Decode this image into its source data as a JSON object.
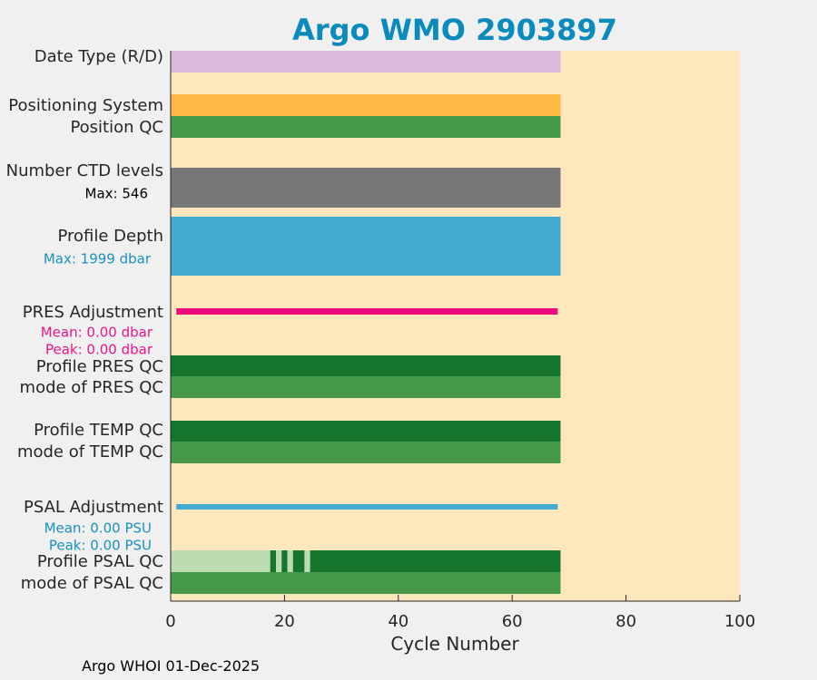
{
  "chart_data": {
    "type": "bar",
    "title": "Argo WMO 2903897",
    "xlabel": "Cycle Number",
    "xlim": [
      0,
      100
    ],
    "xticks": [
      0,
      20,
      40,
      60,
      80,
      100
    ],
    "rows": [
      {
        "label": "Date Type (R/D)",
        "from": 0,
        "to": 68.5,
        "color": "#dbb9dc"
      },
      {
        "label": "Positioning System",
        "from": 0,
        "to": 68.5,
        "color": "#ffb745"
      },
      {
        "label": "Position QC",
        "from": 0,
        "to": 68.5,
        "color": "#46994a"
      },
      {
        "label": "Number CTD levels",
        "from": 0,
        "to": 68.5,
        "color": "#777777"
      },
      {
        "label": "Profile Depth",
        "from": 0,
        "to": 68.5,
        "color": "#42aacf"
      },
      {
        "label": "PRES Adjustment",
        "from": 1,
        "to": 68,
        "color": "#ec0a7c"
      },
      {
        "label": "Profile PRES QC",
        "from": 0,
        "to": 68.5,
        "color": "#15752c"
      },
      {
        "label": "mode of PRES QC",
        "from": 0,
        "to": 68.5,
        "color": "#46994a"
      },
      {
        "label": "Profile TEMP QC",
        "from": 0,
        "to": 68.5,
        "color": "#15752c"
      },
      {
        "label": "mode of TEMP QC",
        "from": 0,
        "to": 68.5,
        "color": "#46994a"
      },
      {
        "label": "PSAL Adjustment",
        "from": 1,
        "to": 68,
        "color": "#42aacf"
      },
      {
        "label": "Profile PSAL QC",
        "from": 0,
        "to": 68.5,
        "color": "#15752c",
        "light_segments": [
          [
            0,
            17.5
          ],
          [
            18.5,
            19.5
          ],
          [
            20.5,
            21.5
          ],
          [
            23.5,
            24.5
          ]
        ],
        "light_color": "#bcdbb0"
      },
      {
        "label": "mode of PSAL QC",
        "from": 0,
        "to": 68.5,
        "color": "#46994a"
      }
    ],
    "annotations": {
      "ctd_max": "Max: 546",
      "depth_max": "Max: 1999 dbar",
      "pres_mean": "Mean: 0.00 dbar",
      "pres_peak": "Peak: 0.00 dbar",
      "psal_mean": "Mean: 0.00 PSU",
      "psal_peak": "Peak: 0.00 PSU"
    },
    "annotation_colors": {
      "ctd": "#000000",
      "depth": "#1a91c2",
      "pres": "#e8158b",
      "psal": "#1a91c2"
    },
    "background_color": "#fee6bd"
  },
  "footer": "Argo WHOI 01-Dec-2025"
}
